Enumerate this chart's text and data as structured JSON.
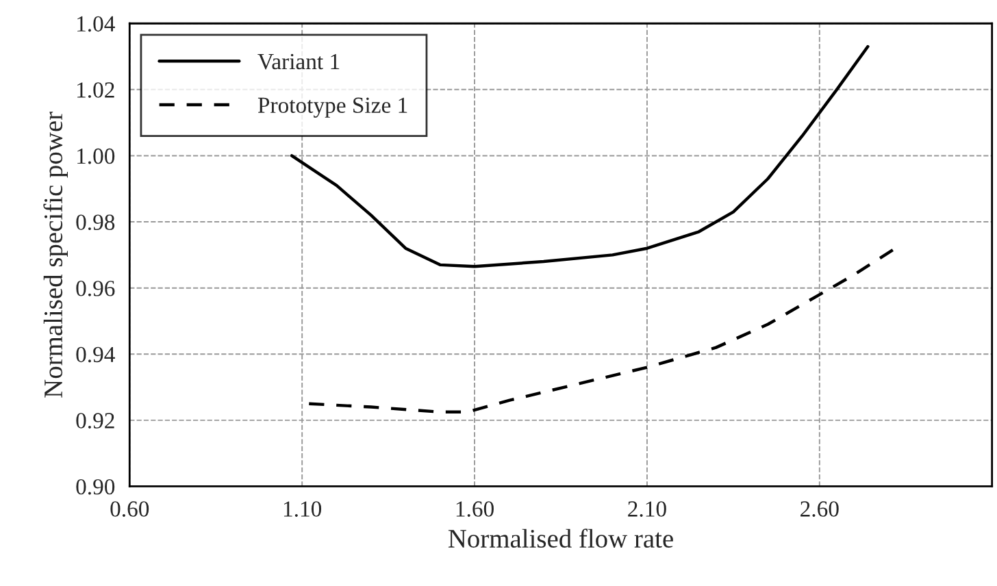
{
  "chart_data": {
    "type": "line",
    "xlabel": "Normalised flow rate",
    "ylabel": "Normalised specific power",
    "xlim": [
      0.6,
      3.1
    ],
    "xticks": [
      {
        "value": 0.6,
        "label": "0.60"
      },
      {
        "value": 1.1,
        "label": "1.10"
      },
      {
        "value": 1.6,
        "label": "1.60"
      },
      {
        "value": 2.1,
        "label": "2.10"
      },
      {
        "value": 2.6,
        "label": "2.60"
      }
    ],
    "ylim": [
      0.9,
      1.04
    ],
    "yticks": [
      {
        "value": 0.9,
        "label": "0.90"
      },
      {
        "value": 0.92,
        "label": "0.92"
      },
      {
        "value": 0.94,
        "label": "0.94"
      },
      {
        "value": 0.96,
        "label": "0.96"
      },
      {
        "value": 0.98,
        "label": "0.98"
      },
      {
        "value": 1.0,
        "label": "1.00"
      },
      {
        "value": 1.02,
        "label": "1.02"
      },
      {
        "value": 1.04,
        "label": "1.04"
      }
    ],
    "grid": true,
    "legend": "top left",
    "marker": "none",
    "series": [
      {
        "name": "Variant 1",
        "color": "#000000",
        "line_style": "solid",
        "x": [
          1.07,
          1.2,
          1.3,
          1.4,
          1.5,
          1.6,
          1.8,
          2.0,
          2.1,
          2.25,
          2.35,
          2.45,
          2.55,
          2.65,
          2.74
        ],
        "values": [
          1.0,
          0.991,
          0.982,
          0.972,
          0.967,
          0.9665,
          0.968,
          0.97,
          0.972,
          0.977,
          0.983,
          0.993,
          1.006,
          1.02,
          1.033
        ]
      },
      {
        "name": "Prototype Size 1",
        "color": "#000000",
        "line_style": "dashed",
        "x": [
          1.12,
          1.3,
          1.5,
          1.58,
          1.7,
          1.9,
          2.1,
          2.3,
          2.45,
          2.6,
          2.7,
          2.82
        ],
        "values": [
          0.925,
          0.924,
          0.9225,
          0.9225,
          0.926,
          0.931,
          0.936,
          0.942,
          0.949,
          0.958,
          0.964,
          0.972
        ]
      }
    ]
  }
}
